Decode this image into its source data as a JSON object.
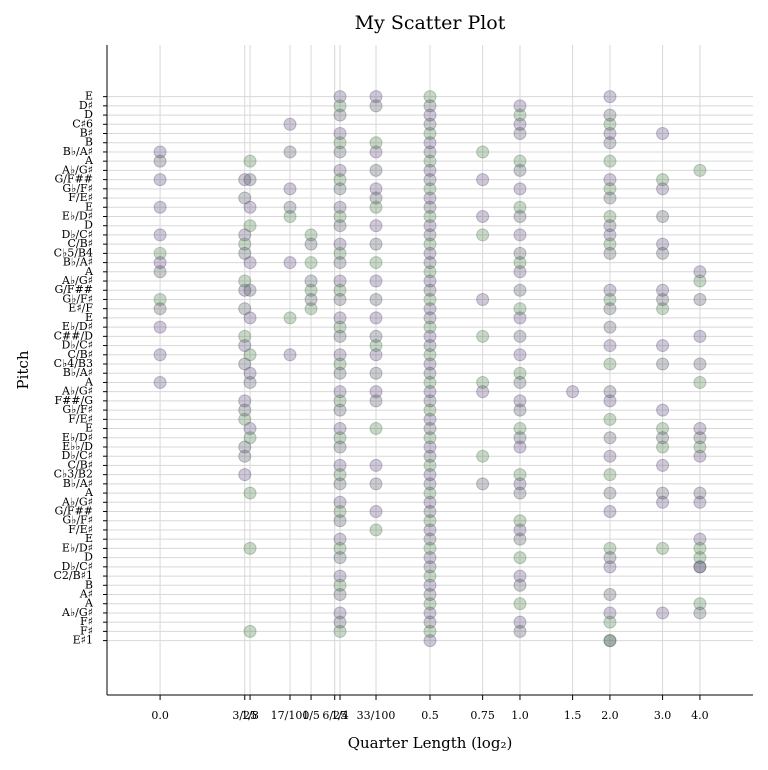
{
  "chart_data": {
    "type": "scatter",
    "title": "My Scatter Plot",
    "x_label": "Quarter Length (log₂)",
    "y_label": "Pitch",
    "grid": true,
    "xlim": [
      -4.59,
      2.59
    ],
    "ylim": [
      23.1,
      93.6
    ],
    "xticks": [
      {
        "value": -4,
        "label": "0.0"
      },
      {
        "value": -3.059,
        "label": "3/25"
      },
      {
        "value": -3,
        "label": "1/8"
      },
      {
        "value": -2.556,
        "label": "17/100"
      },
      {
        "value": -2.322,
        "label": "1/5"
      },
      {
        "value": -2.059,
        "label": "6/25"
      },
      {
        "value": -2,
        "label": "1/4"
      },
      {
        "value": -1.6,
        "label": "33/100"
      },
      {
        "value": -1,
        "label": "0.5"
      },
      {
        "value": -0.415,
        "label": "0.75"
      },
      {
        "value": 0,
        "label": "1.0"
      },
      {
        "value": 0.585,
        "label": "1.5"
      },
      {
        "value": 1,
        "label": "2.0"
      },
      {
        "value": 1.585,
        "label": "3.0"
      },
      {
        "value": 2,
        "label": "4.0"
      }
    ],
    "yticks": [
      {
        "value": 88,
        "label": "E"
      },
      {
        "value": 87,
        "label": "D♯"
      },
      {
        "value": 86,
        "label": "D"
      },
      {
        "value": 85,
        "label": "C♯6"
      },
      {
        "value": 84,
        "label": "B♯"
      },
      {
        "value": 83,
        "label": "B"
      },
      {
        "value": 82,
        "label": "B♭/A♯"
      },
      {
        "value": 81,
        "label": "A"
      },
      {
        "value": 80,
        "label": "A♭/G♯"
      },
      {
        "value": 79,
        "label": "G/F##"
      },
      {
        "value": 78,
        "label": "G♭/F♯"
      },
      {
        "value": 77,
        "label": "F/E♯"
      },
      {
        "value": 76,
        "label": "E"
      },
      {
        "value": 75,
        "label": "E♭/D♯"
      },
      {
        "value": 74,
        "label": "D"
      },
      {
        "value": 73,
        "label": "D♭/C♯"
      },
      {
        "value": 72,
        "label": "C/B♯"
      },
      {
        "value": 71,
        "label": "C♭5/B4"
      },
      {
        "value": 70,
        "label": "B♭/A♯"
      },
      {
        "value": 69,
        "label": "A"
      },
      {
        "value": 68,
        "label": "A♭/G♯"
      },
      {
        "value": 67,
        "label": "G/F##"
      },
      {
        "value": 66,
        "label": "G♭/F♯"
      },
      {
        "value": 65,
        "label": "E♯/F"
      },
      {
        "value": 64,
        "label": "E"
      },
      {
        "value": 63,
        "label": "E♭/D♯"
      },
      {
        "value": 62,
        "label": "C##/D"
      },
      {
        "value": 61,
        "label": "D♭/C♯"
      },
      {
        "value": 60,
        "label": "C/B♯"
      },
      {
        "value": 59,
        "label": "C♭4/B3"
      },
      {
        "value": 58,
        "label": "B♭/A♯"
      },
      {
        "value": 57,
        "label": "A"
      },
      {
        "value": 56,
        "label": "A♭/G♯"
      },
      {
        "value": 55,
        "label": "F##/G"
      },
      {
        "value": 54,
        "label": "G♭/F♯"
      },
      {
        "value": 53,
        "label": "F/E♯"
      },
      {
        "value": 52,
        "label": "E"
      },
      {
        "value": 51,
        "label": "E♭/D♯"
      },
      {
        "value": 50,
        "label": "E♭♭/D"
      },
      {
        "value": 49,
        "label": "D♭/C♯"
      },
      {
        "value": 48,
        "label": "C/B♯"
      },
      {
        "value": 47,
        "label": "C♭3/B2"
      },
      {
        "value": 46,
        "label": "B♭/A♯"
      },
      {
        "value": 45,
        "label": "A"
      },
      {
        "value": 44,
        "label": "A♭/G♯"
      },
      {
        "value": 43,
        "label": "G/F##"
      },
      {
        "value": 42,
        "label": "G♭/F♯"
      },
      {
        "value": 41,
        "label": "F/E♯"
      },
      {
        "value": 40,
        "label": "E"
      },
      {
        "value": 39,
        "label": "E♭/D♯"
      },
      {
        "value": 38,
        "label": "D"
      },
      {
        "value": 37,
        "label": "D♭/C♯"
      },
      {
        "value": 36,
        "label": "C2/B♯1"
      },
      {
        "value": 35,
        "label": "B"
      },
      {
        "value": 34,
        "label": "A♯"
      },
      {
        "value": 33,
        "label": "A"
      },
      {
        "value": 32,
        "label": "A♭/G♯"
      },
      {
        "value": 31,
        "label": "F♯"
      },
      {
        "value": 30,
        "label": "F♯"
      },
      {
        "value": 29,
        "label": "E♯1"
      }
    ],
    "series": [
      {
        "color": "#5c4a7a",
        "x": [
          -4,
          -4,
          -4,
          -4,
          -4,
          -4,
          -4,
          -4,
          -3.059,
          -3.059,
          -3.059,
          -3.059,
          -3.059,
          -3.059,
          -3,
          -3,
          -3,
          -3,
          -3,
          -2.556,
          -2.556,
          -2.556,
          -2.556,
          -2,
          -2,
          -2,
          -2,
          -2,
          -2,
          -2,
          -2,
          -2,
          -2,
          -2,
          -2,
          -2,
          -2,
          -2,
          -1.6,
          -1.6,
          -1.6,
          -1.6,
          -1.6,
          -1.6,
          -1.6,
          -1.6,
          -1.6,
          -1.6,
          -1,
          -1,
          -1,
          -1,
          -1,
          -1,
          -1,
          -1,
          -1,
          -1,
          -1,
          -1,
          -1,
          -1,
          -1,
          -1,
          -1,
          -1,
          -1,
          -1,
          -0.415,
          -0.415,
          -0.415,
          -0.415,
          0,
          0,
          0,
          0,
          0,
          0,
          0,
          0,
          0,
          0,
          0,
          0,
          0,
          0.585,
          1,
          1,
          1,
          1,
          1,
          1,
          1,
          1,
          1,
          1,
          1,
          1.585,
          1.585,
          1.585,
          1.585,
          1.585,
          1.585,
          1.585,
          1.585,
          1.585,
          2,
          2,
          2,
          2,
          2,
          2,
          2
        ],
        "values": [
          82,
          79,
          76,
          73,
          70,
          63,
          60,
          57,
          79,
          73,
          67,
          61,
          55,
          47,
          76,
          70,
          64,
          58,
          52,
          85,
          78,
          70,
          60,
          88,
          84,
          80,
          76,
          72,
          68,
          64,
          60,
          56,
          52,
          48,
          44,
          40,
          36,
          32,
          88,
          82,
          78,
          74,
          68,
          64,
          60,
          56,
          48,
          43,
          86,
          83,
          80,
          77,
          74,
          71,
          68,
          65,
          62,
          59,
          56,
          53,
          50,
          47,
          44,
          41,
          38,
          35,
          32,
          29,
          79,
          75,
          66,
          56,
          87,
          85,
          78,
          73,
          69,
          64,
          60,
          55,
          50,
          46,
          41,
          36,
          31,
          56,
          88,
          84,
          79,
          73,
          67,
          61,
          55,
          49,
          43,
          37,
          32,
          84,
          78,
          72,
          67,
          61,
          54,
          48,
          44,
          32,
          69,
          62,
          52,
          49,
          44,
          40,
          37
        ]
      },
      {
        "color": "#4a7a4a",
        "x": [
          -4,
          -4,
          -3.059,
          -3.059,
          -3.059,
          -3.059,
          -3,
          -3,
          -3,
          -3,
          -3,
          -3,
          -3,
          -2.556,
          -2.556,
          -2.322,
          -2.322,
          -2.322,
          -2.322,
          -2,
          -2,
          -2,
          -2,
          -2,
          -2,
          -2,
          -2,
          -2,
          -2,
          -2,
          -2,
          -2,
          -2,
          -2,
          -1.6,
          -1.6,
          -1.6,
          -1.6,
          -1.6,
          -1.6,
          -1,
          -1,
          -1,
          -1,
          -1,
          -1,
          -1,
          -1,
          -1,
          -1,
          -1,
          -1,
          -1,
          -1,
          -1,
          -1,
          -1,
          -1,
          -1,
          -1,
          -0.415,
          -0.415,
          -0.415,
          -0.415,
          -0.415,
          0,
          0,
          0,
          0,
          0,
          0,
          0,
          0,
          0,
          0,
          0,
          1,
          1,
          1,
          1,
          1,
          1,
          1,
          1,
          1,
          1,
          1,
          1,
          1.585,
          1.585,
          1.585,
          1.585,
          1.585,
          2,
          2,
          2,
          2,
          2,
          2,
          2
        ],
        "values": [
          71,
          66,
          72,
          68,
          62,
          53,
          81,
          74,
          60,
          51,
          45,
          39,
          30,
          75,
          64,
          73,
          70,
          67,
          65,
          87,
          83,
          79,
          75,
          71,
          67,
          63,
          59,
          55,
          51,
          47,
          43,
          39,
          35,
          30,
          83,
          76,
          70,
          61,
          52,
          41,
          88,
          84,
          81,
          78,
          75,
          72,
          69,
          66,
          63,
          60,
          57,
          54,
          51,
          48,
          45,
          42,
          39,
          36,
          33,
          30,
          82,
          73,
          62,
          57,
          49,
          86,
          81,
          76,
          70,
          65,
          58,
          52,
          47,
          42,
          38,
          33,
          85,
          81,
          78,
          75,
          72,
          66,
          59,
          53,
          47,
          39,
          31,
          29,
          79,
          65,
          52,
          50,
          39,
          80,
          68,
          57,
          50,
          39,
          38,
          33
        ]
      },
      {
        "color": "#505565",
        "x": [
          -4,
          -4,
          -4,
          -3.059,
          -3.059,
          -3.059,
          -3.059,
          -3.059,
          -3.059,
          -3.059,
          -3,
          -3,
          -3,
          -2.556,
          -2.556,
          -2.322,
          -2.322,
          -2.322,
          -2,
          -2,
          -2,
          -2,
          -2,
          -2,
          -2,
          -2,
          -2,
          -2,
          -2,
          -2,
          -2,
          -2,
          -2,
          -1.6,
          -1.6,
          -1.6,
          -1.6,
          -1.6,
          -1.6,
          -1.6,
          -1.6,
          -1.6,
          -1,
          -1,
          -1,
          -1,
          -1,
          -1,
          -1,
          -1,
          -1,
          -1,
          -1,
          -1,
          -1,
          -1,
          -1,
          -1,
          -1,
          -1,
          -1,
          -1,
          -0.415,
          0,
          0,
          0,
          0,
          0,
          0,
          0,
          0,
          0,
          0,
          0,
          0,
          0,
          1,
          1,
          1,
          1,
          1,
          1,
          1,
          1,
          1,
          1,
          1,
          1,
          1,
          1.585,
          1.585,
          1.585,
          1.585,
          1.585,
          1.585,
          2,
          2,
          2,
          2,
          2,
          2
        ],
        "values": [
          81,
          69,
          65,
          77,
          71,
          65,
          59,
          54,
          50,
          49,
          79,
          67,
          57,
          82,
          76,
          72,
          68,
          66,
          86,
          82,
          78,
          74,
          70,
          66,
          62,
          58,
          54,
          50,
          46,
          42,
          38,
          34,
          31,
          87,
          80,
          77,
          72,
          66,
          62,
          58,
          55,
          46,
          87,
          85,
          82,
          79,
          76,
          73,
          70,
          67,
          64,
          61,
          58,
          55,
          52,
          49,
          46,
          43,
          40,
          37,
          34,
          31,
          46,
          84,
          80,
          75,
          71,
          67,
          62,
          57,
          54,
          51,
          45,
          40,
          35,
          30,
          86,
          83,
          77,
          74,
          71,
          65,
          63,
          56,
          51,
          45,
          38,
          34,
          29,
          75,
          71,
          66,
          59,
          51,
          45,
          66,
          59,
          51,
          45,
          37,
          32
        ]
      }
    ]
  }
}
